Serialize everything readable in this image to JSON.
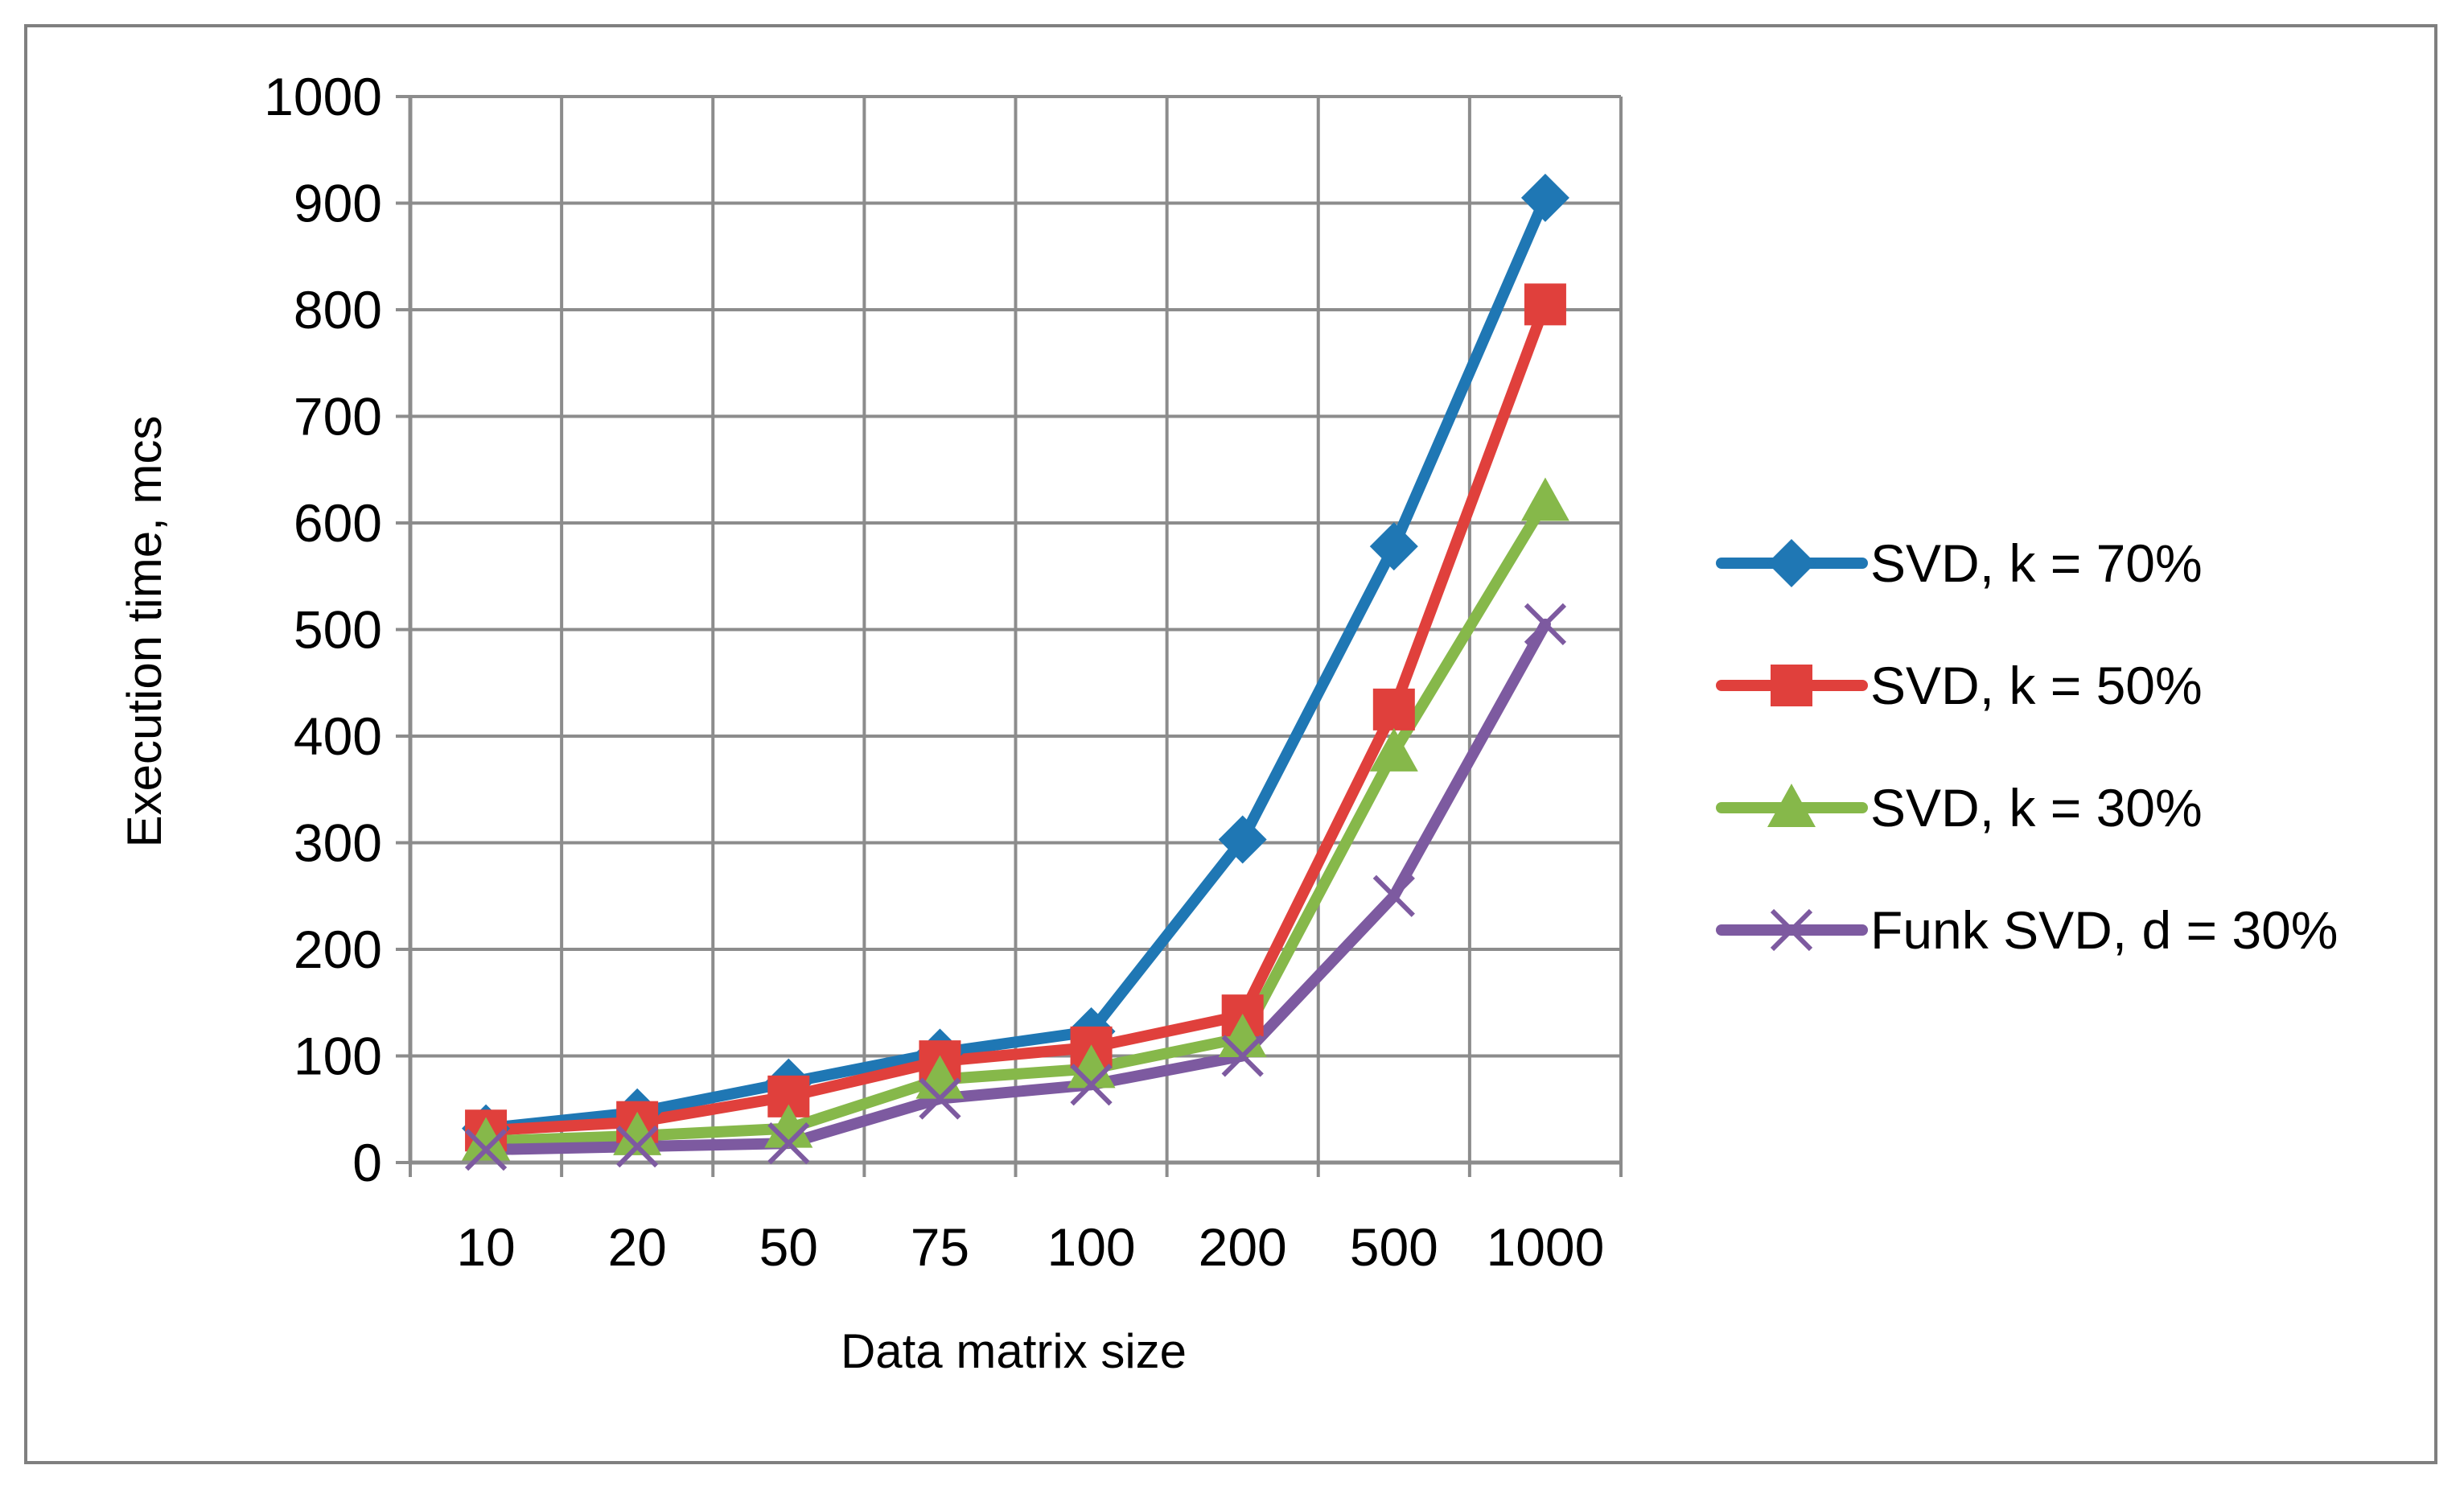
{
  "chart_data": {
    "type": "line",
    "title": "",
    "xlabel": "Data matrix size",
    "ylabel": "Execution time, mcs",
    "categories": [
      "10",
      "20",
      "50",
      "75",
      "100",
      "200",
      "500",
      "1000"
    ],
    "ylim": [
      0,
      1000
    ],
    "yticks": [
      0,
      100,
      200,
      300,
      400,
      500,
      600,
      700,
      800,
      900,
      1000
    ],
    "yticklabels": [
      "0",
      "100",
      "200",
      "300",
      "400",
      "500",
      "600",
      "700",
      "800",
      "900",
      "1000"
    ],
    "grid": true,
    "legend_position": "right",
    "series": [
      {
        "name": "SVD, k = 70%",
        "color": "#1f77b4",
        "marker": "diamond",
        "values": [
          32,
          47,
          75,
          103,
          123,
          303,
          578,
          905
        ]
      },
      {
        "name": "SVD, k = 50%",
        "color": "#e0403c",
        "marker": "square",
        "values": [
          30,
          38,
          62,
          95,
          108,
          138,
          425,
          805
        ]
      },
      {
        "name": "SVD, k = 30%",
        "color": "#86b84a",
        "marker": "triangle",
        "values": [
          20,
          25,
          32,
          78,
          88,
          117,
          385,
          620
        ]
      },
      {
        "name": "Funk SVD, d = 30%",
        "color": "#7d5aa0",
        "marker": "x",
        "values": [
          12,
          15,
          18,
          60,
          73,
          100,
          250,
          505
        ]
      }
    ]
  }
}
